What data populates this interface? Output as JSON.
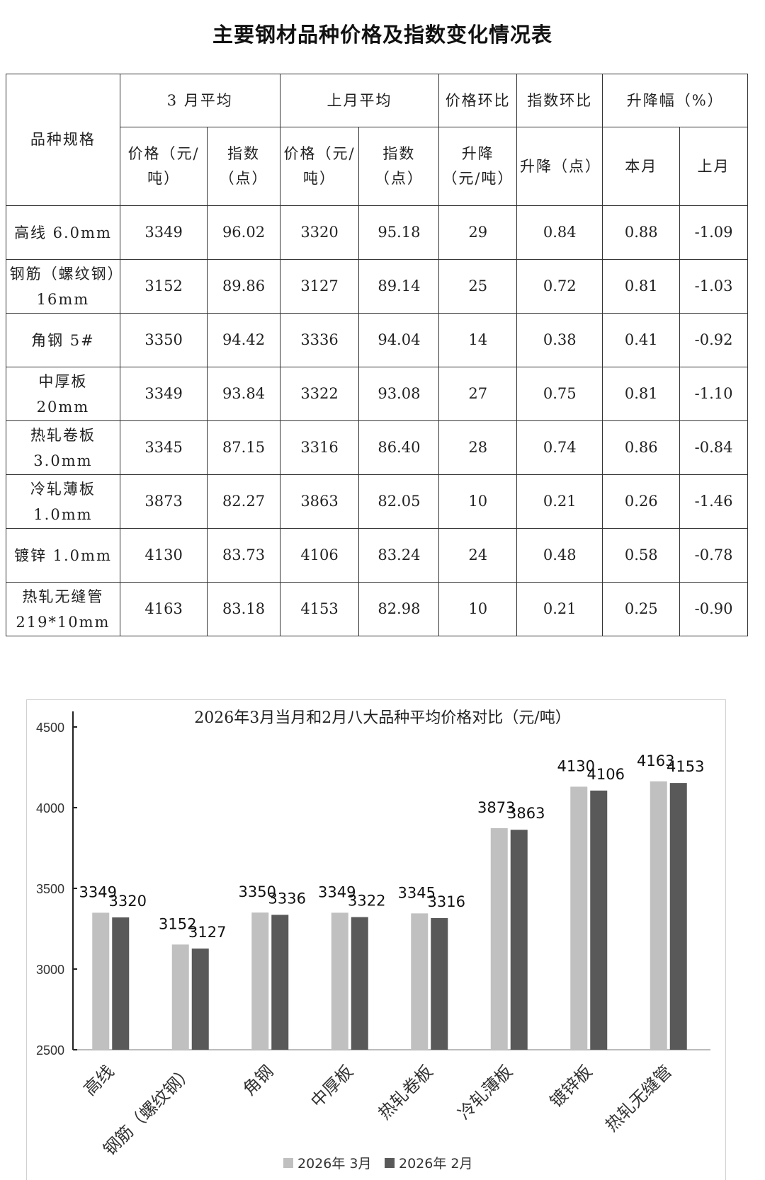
{
  "page_title": "主要钢材品种价格及指数变化情况表",
  "table": {
    "header": {
      "spec": "品种规格",
      "mar_avg": "3 月平均",
      "prev_avg": "上月平均",
      "price_mom": "价格环比",
      "index_mom": "指数环比",
      "change_rate": "升降幅（%）",
      "mar_price": "价格（元/吨）",
      "mar_index": "指数（点）",
      "prev_price": "价格（元/吨）",
      "prev_index": "指数（点）",
      "price_change": "升降（元/吨）",
      "index_change": "升降（点）",
      "this_month": "本月",
      "last_month": "上月"
    },
    "rows": [
      {
        "spec": "高线 6.0mm",
        "mar_price": "3349",
        "mar_index": "96.02",
        "prev_price": "3320",
        "prev_index": "95.18",
        "price_change": "29",
        "index_change": "0.84",
        "this_month": "0.88",
        "last_month": "-1.09"
      },
      {
        "spec": "钢筋（螺纹钢）16mm",
        "mar_price": "3152",
        "mar_index": "89.86",
        "prev_price": "3127",
        "prev_index": "89.14",
        "price_change": "25",
        "index_change": "0.72",
        "this_month": "0.81",
        "last_month": "-1.03"
      },
      {
        "spec": "角钢 5#",
        "mar_price": "3350",
        "mar_index": "94.42",
        "prev_price": "3336",
        "prev_index": "94.04",
        "price_change": "14",
        "index_change": "0.38",
        "this_month": "0.41",
        "last_month": "-0.92"
      },
      {
        "spec": "中厚板 20mm",
        "mar_price": "3349",
        "mar_index": "93.84",
        "prev_price": "3322",
        "prev_index": "93.08",
        "price_change": "27",
        "index_change": "0.75",
        "this_month": "0.81",
        "last_month": "-1.10"
      },
      {
        "spec": "热轧卷板 3.0mm",
        "mar_price": "3345",
        "mar_index": "87.15",
        "prev_price": "3316",
        "prev_index": "86.40",
        "price_change": "28",
        "index_change": "0.74",
        "this_month": "0.86",
        "last_month": "-0.84"
      },
      {
        "spec": "冷轧薄板 1.0mm",
        "mar_price": "3873",
        "mar_index": "82.27",
        "prev_price": "3863",
        "prev_index": "82.05",
        "price_change": "10",
        "index_change": "0.21",
        "this_month": "0.26",
        "last_month": "-1.46"
      },
      {
        "spec": "镀锌 1.0mm",
        "mar_price": "4130",
        "mar_index": "83.73",
        "prev_price": "4106",
        "prev_index": "83.24",
        "price_change": "24",
        "index_change": "0.48",
        "this_month": "0.58",
        "last_month": "-0.78"
      },
      {
        "spec": "热轧无缝管 219*10mm",
        "mar_price": "4163",
        "mar_index": "83.18",
        "prev_price": "4153",
        "prev_index": "82.98",
        "price_change": "10",
        "index_change": "0.21",
        "this_month": "0.25",
        "last_month": "-0.90"
      }
    ]
  },
  "chart_data": {
    "type": "bar",
    "title": "2026年3月当月和2月八大品种平均价格对比（元/吨）",
    "categories": [
      "高线",
      "钢筋（螺纹钢）",
      "角钢",
      "中厚板",
      "热轧卷板",
      "冷轧薄板",
      "镀锌板",
      "热轧无缝管"
    ],
    "series": [
      {
        "name": "2026年 3月",
        "color": "#c0c0c0",
        "values": [
          3349,
          3152,
          3350,
          3349,
          3345,
          3873,
          4130,
          4163
        ]
      },
      {
        "name": "2026年 2月",
        "color": "#595959",
        "values": [
          3320,
          3127,
          3336,
          3322,
          3316,
          3863,
          4106,
          4153
        ]
      }
    ],
    "ylim": [
      2500,
      4500
    ],
    "yticks": [
      2500,
      3000,
      3500,
      4000,
      4500
    ],
    "grid": false,
    "data_labels": true,
    "legend_position": "bottom"
  }
}
